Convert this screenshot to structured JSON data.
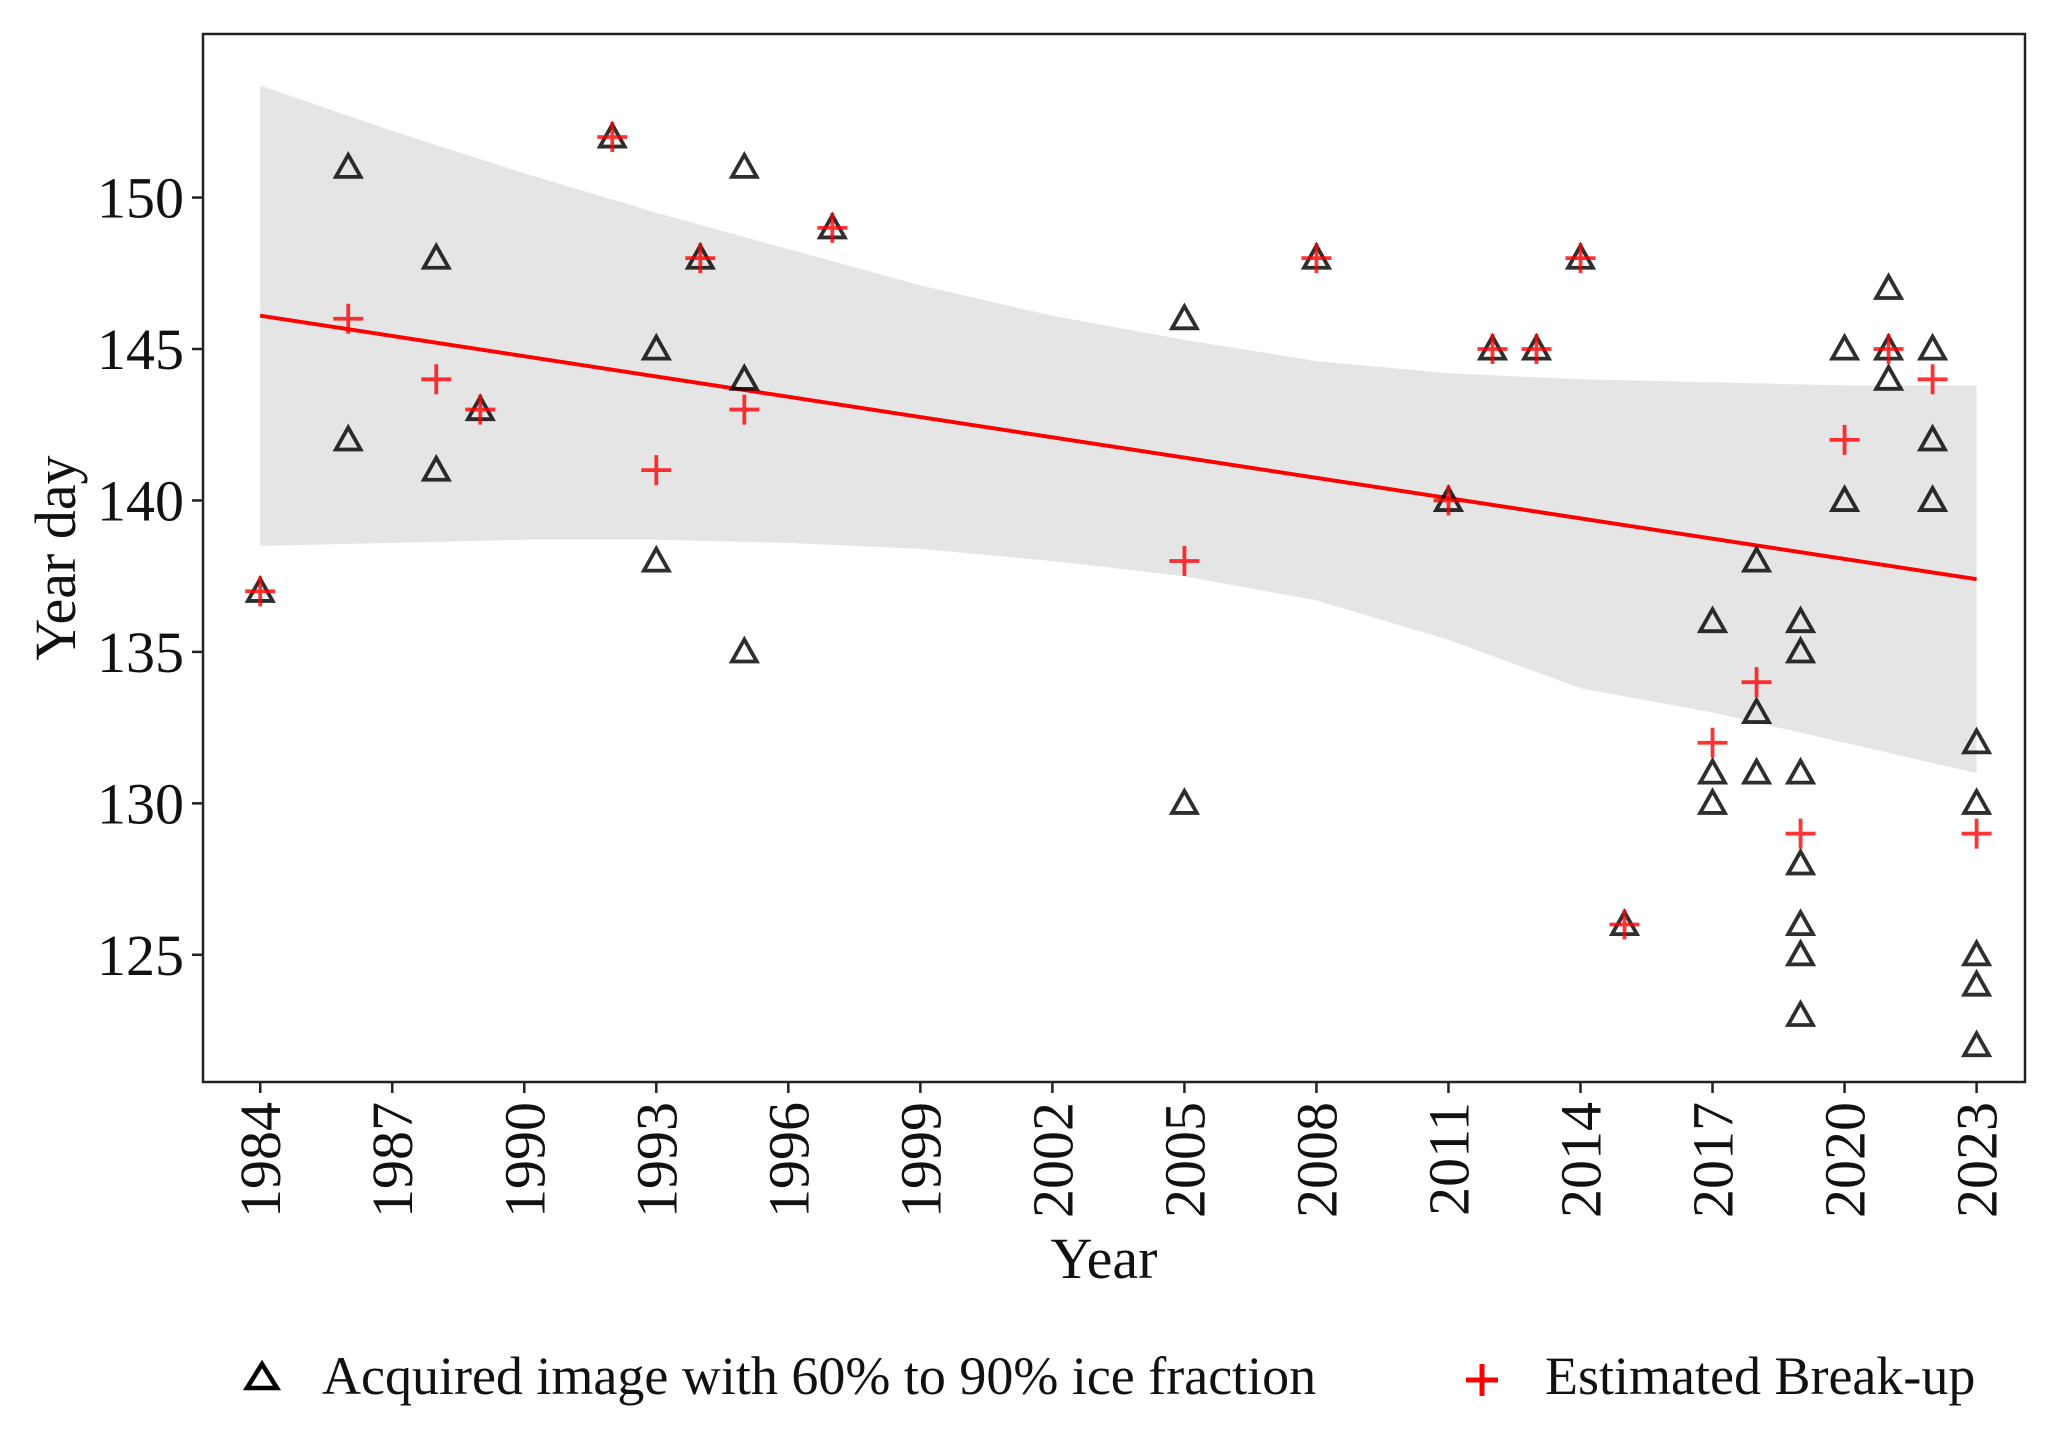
{
  "chart_data": {
    "type": "scatter",
    "xlabel": "Year",
    "ylabel": "Year day",
    "xlim": [
      1982.7,
      2024.1
    ],
    "ylim": [
      120.8,
      155.4
    ],
    "xticks": [
      1984,
      1987,
      1990,
      1993,
      1996,
      1999,
      2002,
      2005,
      2008,
      2011,
      2014,
      2017,
      2020,
      2023
    ],
    "yticks": [
      125,
      130,
      135,
      140,
      145,
      150
    ],
    "grid": false,
    "legend_position": "bottom",
    "series": [
      {
        "name": "Acquired image with 60% to 90% ice fraction",
        "marker": "triangle",
        "color": "#000000",
        "points": [
          [
            1984,
            137
          ],
          [
            1986,
            151
          ],
          [
            1986,
            142
          ],
          [
            1988,
            148
          ],
          [
            1988,
            141
          ],
          [
            1989,
            143
          ],
          [
            1992,
            152
          ],
          [
            1993,
            145
          ],
          [
            1993,
            138
          ],
          [
            1994,
            148
          ],
          [
            1995,
            151
          ],
          [
            1995,
            144
          ],
          [
            1995,
            135
          ],
          [
            1997,
            149
          ],
          [
            2005,
            146
          ],
          [
            2005,
            130
          ],
          [
            2008,
            148
          ],
          [
            2011,
            140
          ],
          [
            2012,
            145
          ],
          [
            2013,
            145
          ],
          [
            2014,
            148
          ],
          [
            2015,
            126
          ],
          [
            2017,
            136
          ],
          [
            2017,
            131
          ],
          [
            2017,
            130
          ],
          [
            2018,
            138
          ],
          [
            2018,
            133
          ],
          [
            2018,
            131
          ],
          [
            2019,
            136
          ],
          [
            2019,
            135
          ],
          [
            2019,
            131
          ],
          [
            2019,
            128
          ],
          [
            2019,
            126
          ],
          [
            2019,
            125
          ],
          [
            2019,
            123
          ],
          [
            2020,
            145
          ],
          [
            2020,
            140
          ],
          [
            2021,
            147
          ],
          [
            2021,
            145
          ],
          [
            2021,
            144
          ],
          [
            2022,
            145
          ],
          [
            2022,
            142
          ],
          [
            2022,
            140
          ],
          [
            2023,
            132
          ],
          [
            2023,
            130
          ],
          [
            2023,
            125
          ],
          [
            2023,
            124
          ],
          [
            2023,
            122
          ]
        ]
      },
      {
        "name": "Estimated Break-up",
        "marker": "plus",
        "color": "#ff0000",
        "points": [
          [
            1984,
            137
          ],
          [
            1986,
            146
          ],
          [
            1988,
            144
          ],
          [
            1989,
            143
          ],
          [
            1992,
            152
          ],
          [
            1993,
            141
          ],
          [
            1994,
            148
          ],
          [
            1995,
            143
          ],
          [
            1997,
            149
          ],
          [
            2005,
            138
          ],
          [
            2008,
            148
          ],
          [
            2011,
            140
          ],
          [
            2012,
            145
          ],
          [
            2013,
            145
          ],
          [
            2014,
            148
          ],
          [
            2015,
            126
          ],
          [
            2017,
            132
          ],
          [
            2018,
            134
          ],
          [
            2019,
            129
          ],
          [
            2020,
            142
          ],
          [
            2021,
            145
          ],
          [
            2022,
            144
          ],
          [
            2023,
            129
          ]
        ]
      }
    ],
    "trend_line": {
      "color": "#ff0000",
      "start": [
        1984,
        146.1
      ],
      "end": [
        2023,
        137.4
      ]
    },
    "confidence_band": {
      "color": "#e5e5e5",
      "x": [
        1984,
        1987,
        1990,
        1993,
        1996,
        1999,
        2002,
        2005,
        2008,
        2011,
        2014,
        2017,
        2020,
        2023
      ],
      "upper": [
        153.7,
        152.2,
        150.8,
        149.5,
        148.3,
        147.1,
        146.1,
        145.3,
        144.6,
        144.2,
        144.0,
        143.9,
        143.8,
        143.8
      ],
      "lower": [
        138.5,
        138.6,
        138.7,
        138.7,
        138.6,
        138.4,
        138.0,
        137.5,
        136.7,
        135.4,
        133.8,
        133.0,
        132.0,
        131.0
      ]
    }
  }
}
